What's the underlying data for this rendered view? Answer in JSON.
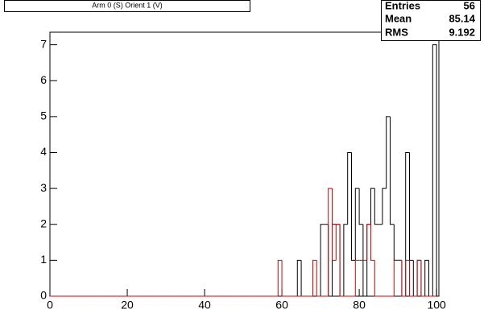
{
  "chart_data": {
    "type": "histogram",
    "title": "Arm 0 (S) Orient 1 (V)",
    "stats": {
      "labels": [
        "Entries",
        "Mean",
        "RMS"
      ],
      "values": [
        56,
        85.14,
        9.192
      ]
    },
    "bins": [
      0,
      1,
      2,
      3,
      4,
      5,
      6,
      7,
      8,
      9,
      10,
      11,
      12,
      13,
      14,
      15,
      16,
      17,
      18,
      19,
      20,
      21,
      22,
      23,
      24,
      25,
      26,
      27,
      28,
      29,
      30,
      31,
      32,
      33,
      34,
      35,
      36,
      37,
      38,
      39,
      40,
      41,
      42,
      43,
      44,
      45,
      46,
      47,
      48,
      49,
      50,
      51,
      52,
      53,
      54,
      55,
      56,
      57,
      58,
      59,
      60,
      61,
      62,
      63,
      64,
      65,
      66,
      67,
      68,
      69,
      70,
      71,
      72,
      73,
      74,
      75,
      76,
      77,
      78,
      79,
      80,
      81,
      82,
      83,
      84,
      85,
      86,
      87,
      88,
      89,
      90,
      91,
      92,
      93,
      94,
      95,
      96,
      97,
      98,
      99,
      100
    ],
    "series": [
      {
        "color": "#000000",
        "values": [
          0,
          0,
          0,
          0,
          0,
          0,
          0,
          0,
          0,
          0,
          0,
          0,
          0,
          0,
          0,
          0,
          0,
          0,
          0,
          0,
          0,
          0,
          0,
          0,
          0,
          0,
          0,
          0,
          0,
          0,
          0,
          0,
          0,
          0,
          0,
          0,
          0,
          0,
          0,
          0,
          0,
          0,
          0,
          0,
          0,
          0,
          0,
          0,
          0,
          0,
          0,
          0,
          0,
          0,
          0,
          0,
          0,
          0,
          0,
          0,
          0,
          0,
          0,
          0,
          1,
          0,
          0,
          0,
          0,
          0,
          2,
          2,
          0,
          2,
          2,
          0,
          2,
          4,
          1,
          3,
          2,
          0,
          2,
          3,
          2,
          2,
          3,
          5,
          2,
          1,
          1,
          0,
          4,
          1,
          0,
          1,
          0,
          1,
          0,
          7
        ]
      },
      {
        "color": "#dd0000",
        "values": [
          0,
          0,
          0,
          0,
          0,
          0,
          0,
          0,
          0,
          0,
          0,
          0,
          0,
          0,
          0,
          0,
          0,
          0,
          0,
          0,
          0,
          0,
          0,
          0,
          0,
          0,
          0,
          0,
          0,
          0,
          0,
          0,
          0,
          0,
          0,
          0,
          0,
          0,
          0,
          0,
          0,
          0,
          0,
          0,
          0,
          0,
          0,
          0,
          0,
          0,
          0,
          0,
          0,
          0,
          0,
          0,
          0,
          0,
          0,
          1,
          0,
          0,
          0,
          0,
          0,
          0,
          0,
          0,
          1,
          0,
          0,
          0,
          3,
          1,
          2,
          0,
          0,
          0,
          0,
          1,
          1,
          1,
          2,
          1,
          0,
          0,
          0,
          0,
          0,
          1,
          1,
          0,
          1,
          0,
          0,
          1,
          0,
          0,
          0,
          0
        ]
      }
    ],
    "xlim": [
      0,
      100.6
    ],
    "xticks": [
      0,
      20,
      40,
      60,
      80,
      100
    ],
    "ylim": [
      0,
      7.35
    ],
    "yticks": [
      0,
      1,
      2,
      3,
      4,
      5,
      6,
      7
    ]
  }
}
